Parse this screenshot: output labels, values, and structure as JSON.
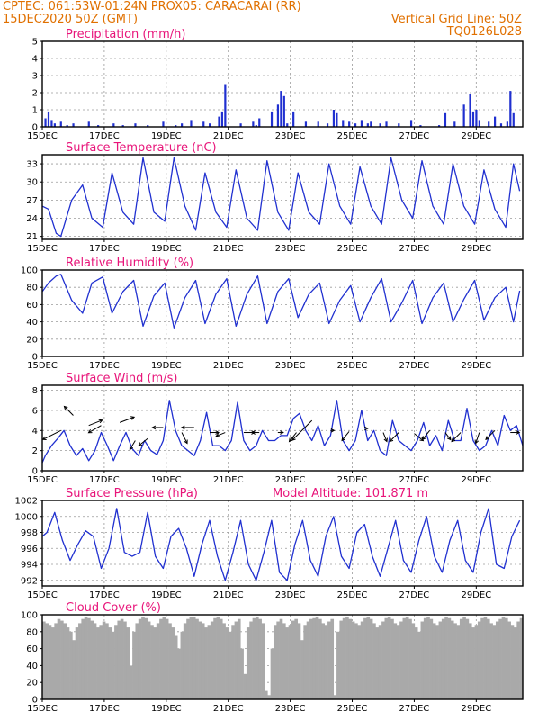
{
  "header": {
    "left1": "CPTEC:   061:53W-01:24N   PROX05: CARACARAI (RR)",
    "left2": "15DEC2020 50Z (GMT)",
    "right1": "Vertical Grid Line: 50Z",
    "right2": "TQ0126L028"
  },
  "colors": {
    "line": "#2030d0",
    "bar": "#2030d0",
    "cloud": "#a9a9a9",
    "title": "#e8157a",
    "header": "#e07000",
    "grid": "#9a9a9a"
  },
  "chart_data": [
    {
      "id": "precip",
      "type": "bar",
      "title": "Precipitation (mm/h)",
      "ylim": [
        0,
        5
      ],
      "yticks": [
        0,
        1,
        2,
        3,
        4,
        5
      ],
      "xlim": [
        0,
        15.5
      ],
      "xticks": [
        "15DEC",
        "17DEC",
        "19DEC",
        "21DEC",
        "23DEC",
        "25DEC",
        "27DEC",
        "29DEC"
      ],
      "x": [
        0.1,
        0.2,
        0.3,
        0.4,
        0.6,
        0.8,
        1.0,
        1.5,
        1.8,
        2.3,
        2.6,
        3.0,
        3.4,
        3.9,
        4.3,
        4.5,
        4.8,
        5.2,
        5.4,
        5.7,
        5.8,
        5.9,
        6.4,
        6.8,
        6.9,
        7.0,
        7.4,
        7.6,
        7.7,
        7.8,
        7.9,
        8.1,
        8.5,
        8.9,
        9.2,
        9.4,
        9.5,
        9.7,
        9.9,
        10.1,
        10.3,
        10.5,
        10.6,
        10.9,
        11.1,
        11.5,
        11.9,
        12.2,
        12.8,
        13.0,
        13.3,
        13.6,
        13.8,
        13.9,
        14.0,
        14.1,
        14.4,
        14.6,
        14.8,
        15.0,
        15.1,
        15.2
      ],
      "values": [
        0.5,
        0.9,
        0.4,
        0.2,
        0.3,
        0.1,
        0.2,
        0.3,
        0.1,
        0.2,
        0.1,
        0.2,
        0.1,
        0.3,
        0.1,
        0.2,
        0.4,
        0.3,
        0.2,
        0.6,
        0.9,
        2.5,
        0.2,
        0.3,
        0.1,
        0.5,
        0.9,
        1.3,
        2.1,
        1.8,
        0.2,
        0.9,
        0.3,
        0.3,
        0.2,
        1.0,
        0.8,
        0.4,
        0.3,
        0.2,
        0.4,
        0.2,
        0.3,
        0.2,
        0.3,
        0.2,
        0.4,
        0.1,
        0.1,
        0.8,
        0.3,
        1.3,
        1.9,
        0.9,
        1.0,
        0.4,
        0.3,
        0.6,
        0.2,
        0.3,
        2.1,
        0.8
      ]
    },
    {
      "id": "temp",
      "type": "line",
      "title": "Surface Temperature (nC)",
      "ylim": [
        20.5,
        34.5
      ],
      "yticks": [
        21,
        24,
        27,
        30,
        33
      ],
      "xlim": [
        0,
        15.5
      ],
      "xticks": [
        "15DEC",
        "17DEC",
        "19DEC",
        "21DEC",
        "23DEC",
        "25DEC",
        "27DEC",
        "29DEC"
      ],
      "x": [
        0.0,
        0.2,
        0.45,
        0.6,
        0.95,
        1.3,
        1.6,
        1.95,
        2.25,
        2.6,
        2.95,
        3.25,
        3.6,
        3.95,
        4.25,
        4.6,
        4.95,
        5.25,
        5.6,
        5.95,
        6.25,
        6.6,
        6.95,
        7.25,
        7.6,
        7.95,
        8.25,
        8.6,
        8.95,
        9.25,
        9.6,
        9.95,
        10.25,
        10.6,
        10.95,
        11.25,
        11.6,
        11.95,
        12.25,
        12.6,
        12.95,
        13.25,
        13.6,
        13.95,
        14.25,
        14.6,
        14.95,
        15.2,
        15.4
      ],
      "values": [
        26,
        25.5,
        21.5,
        21,
        27,
        29.5,
        24,
        22.5,
        31.5,
        25,
        23,
        34,
        25,
        23.5,
        34,
        26,
        22,
        31.5,
        25,
        22.5,
        32,
        24,
        22,
        33.5,
        25,
        22,
        31.5,
        25,
        23,
        33,
        26,
        23,
        32.5,
        26,
        23,
        34,
        27,
        24,
        33.5,
        26,
        23,
        33,
        26,
        23,
        32,
        25.5,
        22.5,
        33,
        28.5
      ]
    },
    {
      "id": "rh",
      "type": "line",
      "title": "Relative Humidity (%)",
      "ylim": [
        0,
        100
      ],
      "yticks": [
        0,
        20,
        40,
        60,
        80,
        100
      ],
      "xlim": [
        0,
        15.5
      ],
      "xticks": [
        "15DEC",
        "17DEC",
        "19DEC",
        "21DEC",
        "23DEC",
        "25DEC",
        "27DEC",
        "29DEC"
      ],
      "x": [
        0.0,
        0.2,
        0.45,
        0.6,
        0.95,
        1.3,
        1.6,
        1.95,
        2.25,
        2.6,
        2.95,
        3.25,
        3.6,
        3.95,
        4.25,
        4.6,
        4.95,
        5.25,
        5.6,
        5.95,
        6.25,
        6.6,
        6.95,
        7.25,
        7.6,
        7.95,
        8.25,
        8.6,
        8.95,
        9.25,
        9.6,
        9.95,
        10.25,
        10.6,
        10.95,
        11.25,
        11.6,
        11.95,
        12.25,
        12.6,
        12.95,
        13.25,
        13.6,
        13.95,
        14.25,
        14.6,
        14.95,
        15.2,
        15.4
      ],
      "values": [
        75,
        85,
        93,
        95,
        65,
        50,
        85,
        92,
        50,
        75,
        88,
        35,
        70,
        85,
        33,
        68,
        88,
        38,
        72,
        90,
        35,
        72,
        93,
        38,
        75,
        90,
        45,
        72,
        85,
        38,
        65,
        82,
        40,
        68,
        90,
        40,
        62,
        88,
        38,
        68,
        85,
        40,
        66,
        88,
        42,
        68,
        80,
        40,
        76
      ]
    },
    {
      "id": "wind",
      "type": "line",
      "title": "Surface Wind (m/s)",
      "ylim": [
        0,
        8.5
      ],
      "yticks": [
        0,
        2,
        4,
        6,
        8
      ],
      "xlim": [
        0,
        15.5
      ],
      "xticks": [
        "15DEC",
        "17DEC",
        "19DEC",
        "21DEC",
        "23DEC",
        "25DEC",
        "27DEC",
        "29DEC"
      ],
      "x": [
        0.0,
        0.1,
        0.3,
        0.5,
        0.7,
        0.9,
        1.1,
        1.3,
        1.5,
        1.7,
        1.9,
        2.1,
        2.3,
        2.5,
        2.7,
        2.9,
        3.1,
        3.3,
        3.5,
        3.7,
        3.9,
        4.1,
        4.3,
        4.5,
        4.7,
        4.9,
        5.1,
        5.3,
        5.5,
        5.7,
        5.9,
        6.1,
        6.3,
        6.5,
        6.7,
        6.9,
        7.1,
        7.3,
        7.5,
        7.7,
        7.9,
        8.1,
        8.3,
        8.5,
        8.7,
        8.9,
        9.1,
        9.3,
        9.5,
        9.7,
        9.9,
        10.1,
        10.3,
        10.5,
        10.7,
        10.9,
        11.1,
        11.3,
        11.5,
        11.7,
        11.9,
        12.1,
        12.3,
        12.5,
        12.7,
        12.9,
        13.1,
        13.3,
        13.5,
        13.7,
        13.9,
        14.1,
        14.3,
        14.5,
        14.7,
        14.9,
        15.1,
        15.3,
        15.5
      ],
      "values": [
        0.8,
        1.5,
        2.5,
        3.2,
        4.0,
        2.5,
        1.5,
        2.2,
        1.0,
        2.0,
        3.8,
        2.5,
        1.0,
        2.5,
        3.8,
        2.2,
        1.5,
        3.0,
        2.0,
        1.6,
        3.0,
        7.0,
        4.0,
        2.5,
        2.0,
        1.5,
        3.0,
        5.8,
        2.5,
        2.5,
        2.0,
        3.0,
        6.8,
        3.0,
        2.0,
        2.5,
        4.0,
        3.0,
        3.0,
        3.5,
        3.5,
        5.2,
        5.7,
        4.0,
        3.0,
        4.5,
        2.5,
        3.5,
        7.0,
        3.0,
        2.0,
        3.0,
        6.0,
        3.0,
        4.0,
        2.0,
        1.5,
        5.0,
        3.0,
        2.5,
        2.0,
        3.0,
        4.8,
        2.5,
        3.5,
        2.0,
        5.0,
        3.0,
        3.0,
        6.2,
        3.0,
        2.0,
        2.5,
        4.0,
        2.5,
        5.5,
        4.0,
        4.5,
        2.5
      ]
    },
    {
      "id": "press",
      "type": "line",
      "title": "Surface Pressure (hPa)",
      "annotation": "Model Altitude: 101.871  m",
      "ylim": [
        991.3,
        1002
      ],
      "yticks": [
        992,
        994,
        996,
        998,
        1000,
        1002
      ],
      "xlim": [
        0,
        15.5
      ],
      "xticks": [
        "15DEC",
        "17DEC",
        "19DEC",
        "21DEC",
        "23DEC",
        "25DEC",
        "27DEC",
        "29DEC"
      ],
      "x": [
        0.0,
        0.15,
        0.4,
        0.65,
        0.9,
        1.15,
        1.4,
        1.65,
        1.9,
        2.15,
        2.4,
        2.65,
        2.9,
        3.15,
        3.4,
        3.65,
        3.9,
        4.15,
        4.4,
        4.65,
        4.9,
        5.15,
        5.4,
        5.65,
        5.9,
        6.15,
        6.4,
        6.65,
        6.9,
        7.15,
        7.4,
        7.65,
        7.9,
        8.15,
        8.4,
        8.65,
        8.9,
        9.15,
        9.4,
        9.65,
        9.9,
        10.15,
        10.4,
        10.65,
        10.9,
        11.15,
        11.4,
        11.65,
        11.9,
        12.15,
        12.4,
        12.65,
        12.9,
        13.15,
        13.4,
        13.65,
        13.9,
        14.15,
        14.4,
        14.65,
        14.9,
        15.15,
        15.4
      ],
      "values": [
        997.5,
        998.0,
        1000.5,
        997.0,
        994.5,
        996.5,
        998.2,
        997.5,
        993.5,
        996.0,
        1001.0,
        995.5,
        995.0,
        995.5,
        1000.5,
        995.0,
        993.5,
        997.5,
        998.5,
        996.0,
        992.5,
        996.5,
        999.5,
        995.0,
        992.0,
        995.5,
        999.5,
        994.0,
        992.0,
        995.5,
        999.5,
        993.0,
        992.0,
        996.5,
        999.5,
        994.5,
        992.5,
        997.5,
        1000.0,
        995.0,
        993.5,
        998.0,
        999.0,
        995.0,
        992.5,
        996.0,
        999.5,
        994.5,
        993.0,
        997.0,
        1000.0,
        995.0,
        993.0,
        997.0,
        999.5,
        994.5,
        993.0,
        998.0,
        1001.0,
        994.0,
        993.5,
        997.5,
        999.5
      ]
    },
    {
      "id": "cloud",
      "type": "bar",
      "title": "Cloud Cover (%)",
      "ylim": [
        0,
        100
      ],
      "yticks": [
        0,
        20,
        40,
        60,
        80,
        100
      ],
      "xlim": [
        0,
        15.5
      ],
      "xticks": [
        "15DEC",
        "17DEC",
        "19DEC",
        "21DEC",
        "23DEC",
        "25DEC",
        "27DEC",
        "29DEC"
      ],
      "values": [
        92,
        90,
        88,
        85,
        90,
        95,
        93,
        90,
        85,
        80,
        70,
        85,
        90,
        95,
        97,
        96,
        93,
        90,
        85,
        88,
        92,
        90,
        85,
        80,
        88,
        93,
        95,
        92,
        85,
        40,
        80,
        90,
        95,
        97,
        96,
        92,
        88,
        85,
        90,
        95,
        97,
        95,
        90,
        85,
        75,
        60,
        80,
        90,
        95,
        97,
        97,
        95,
        92,
        90,
        85,
        88,
        92,
        96,
        97,
        95,
        90,
        85,
        80,
        88,
        92,
        95,
        60,
        30,
        85,
        92,
        96,
        97,
        95,
        90,
        10,
        5,
        60,
        88,
        92,
        95,
        90,
        85,
        88,
        93,
        95,
        90,
        70,
        88,
        92,
        95,
        96,
        97,
        95,
        90,
        88,
        92,
        95,
        5,
        80,
        93,
        96,
        97,
        95,
        92,
        90,
        88,
        92,
        96,
        97,
        95,
        90,
        85,
        88,
        92,
        96,
        97,
        95,
        90,
        88,
        92,
        96,
        97,
        95,
        90,
        85,
        80,
        92,
        96,
        97,
        95,
        90,
        88,
        92,
        95,
        97,
        96,
        93,
        90,
        88,
        95,
        97,
        95,
        90,
        85,
        88,
        92,
        96,
        97,
        95,
        90,
        88,
        92,
        95,
        97,
        96,
        92,
        88,
        85,
        92,
        96
      ]
    }
  ]
}
